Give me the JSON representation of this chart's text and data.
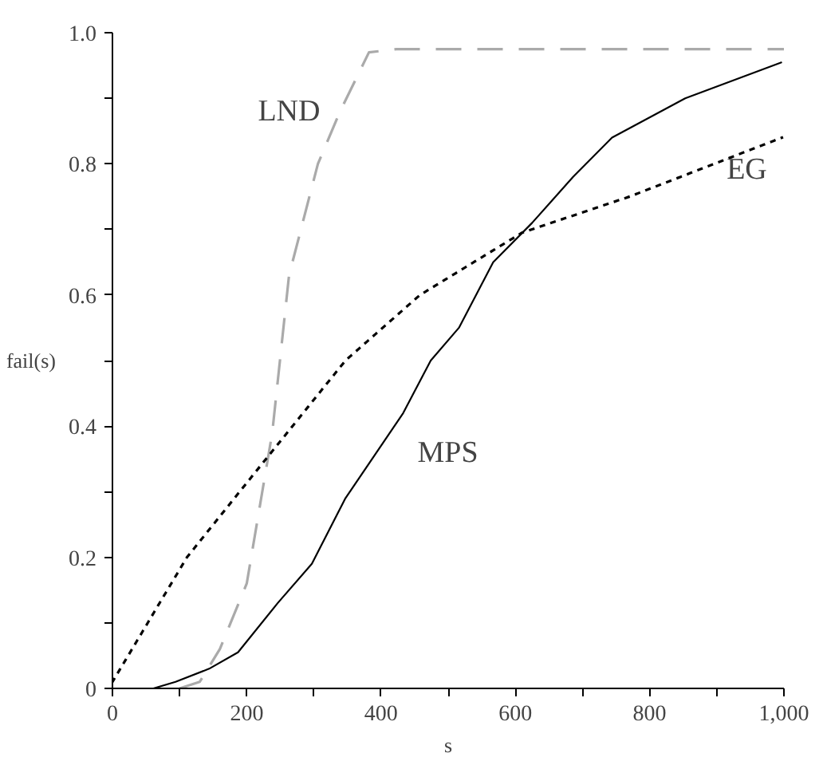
{
  "chart_data": {
    "type": "line",
    "xlabel": "s",
    "ylabel": "fail(s)",
    "xlim": [
      0,
      1000
    ],
    "ylim": [
      0,
      1
    ],
    "xticks": [
      0,
      {
        "value": 100,
        "label": null
      },
      200,
      {
        "value": 300,
        "label": null
      },
      400,
      {
        "value": 500,
        "label": null
      },
      600,
      {
        "value": 700,
        "label": null
      },
      800,
      {
        "value": 900,
        "label": null
      },
      {
        "value": 1000,
        "label": "1,000"
      }
    ],
    "yticks": [
      0,
      {
        "value": 0.1,
        "label": null
      },
      0.2,
      {
        "value": 0.3,
        "label": null
      },
      0.4,
      {
        "value": 0.5,
        "label": null
      },
      0.6,
      {
        "value": 0.7,
        "label": null
      },
      0.8,
      {
        "value": 0.9,
        "label": null
      },
      {
        "value": 1,
        "label": "1.0"
      }
    ],
    "grid": false,
    "series": [
      {
        "name": "LND",
        "color": "#aaaaaa",
        "line_style": "dashed",
        "x": [
          100,
          130,
          160,
          200,
          238,
          263,
          306,
          339,
          382,
          423,
          1000
        ],
        "values": [
          0,
          0.01,
          0.06,
          0.16,
          0.39,
          0.63,
          0.8,
          0.88,
          0.97,
          0.975,
          0.975
        ]
      },
      {
        "name": "MPS",
        "color": "#000000",
        "line_style": "solid",
        "x": [
          0,
          61,
          94,
          144,
          187,
          246,
          297,
          347,
          433,
          474,
          516,
          567,
          625,
          686,
          744,
          853,
          997
        ],
        "values": [
          0,
          0,
          0.01,
          0.03,
          0.055,
          0.13,
          0.19,
          0.29,
          0.42,
          0.5,
          0.55,
          0.65,
          0.71,
          0.78,
          0.84,
          0.9,
          0.955
        ]
      },
      {
        "name": "EG",
        "color": "#000000",
        "line_style": "dotted",
        "x": [
          0,
          111,
          213,
          347,
          458,
          610,
          770,
          997
        ],
        "values": [
          0.01,
          0.2,
          0.33,
          0.5,
          0.6,
          0.695,
          0.75,
          0.84
        ]
      }
    ]
  }
}
